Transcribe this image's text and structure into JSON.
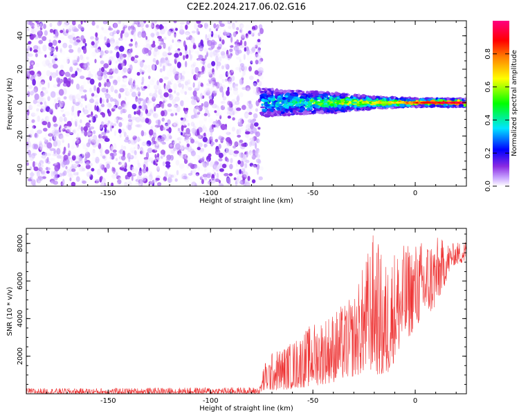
{
  "figure": {
    "title": "C2E2.2024.217.06.02.G16"
  },
  "chart_data": [
    {
      "type": "heatmap",
      "title": "C2E2.2024.217.06.02.G16",
      "xlabel": "Height of straight line (km)",
      "ylabel": "Frequency (Hz)",
      "xlim": [
        -190,
        25
      ],
      "ylim": [
        -50,
        49
      ],
      "xticks": [
        -150,
        -100,
        -50,
        0
      ],
      "yticks": [
        -40,
        -20,
        0,
        20,
        40
      ],
      "grid": false,
      "colorbar": {
        "label": "Normalized spectral amplitude",
        "range": [
          0,
          1
        ],
        "ticks": [
          0.0,
          0.2,
          0.4,
          0.6,
          0.8
        ],
        "colormap": [
          "#ffffff",
          "#c9a6ff",
          "#8a2be2",
          "#0000ff",
          "#00e5ff",
          "#00ff00",
          "#ffff00",
          "#ff8000",
          "#ff0000",
          "#ff0080"
        ]
      },
      "regions": [
        {
          "name": "noise",
          "x_range": [
            -190,
            -75
          ],
          "freq_range": [
            -50,
            49
          ],
          "amplitude_range": [
            0.0,
            0.25
          ]
        },
        {
          "name": "signal",
          "x_range": [
            -75,
            25
          ],
          "center_freq": 0,
          "amplitude_range": [
            0.2,
            1.0
          ]
        }
      ],
      "signal_halfwidth_hz": [
        [
          -75,
          7
        ],
        [
          -60,
          6
        ],
        [
          -40,
          5
        ],
        [
          -20,
          3
        ],
        [
          0,
          2
        ],
        [
          25,
          2
        ]
      ]
    },
    {
      "type": "line",
      "title": "",
      "xlabel": "Height of straight line (km)",
      "ylabel": "SNR (10 * v/v)",
      "xlim": [
        -190,
        25
      ],
      "ylim": [
        0,
        8800
      ],
      "xticks": [
        -150,
        -100,
        -50,
        0
      ],
      "yticks": [
        2000,
        4000,
        6000,
        8000
      ],
      "grid": false,
      "color": "#ee3333",
      "envelope": {
        "x": [
          -190,
          -150,
          -100,
          -76,
          -74,
          -70,
          -60,
          -50,
          -40,
          -30,
          -20,
          -15,
          -10,
          0,
          10,
          18,
          25
        ],
        "low": [
          0,
          0,
          0,
          0,
          100,
          150,
          250,
          400,
          600,
          900,
          1200,
          500,
          1800,
          3500,
          4500,
          6800,
          7000
        ],
        "high": [
          300,
          300,
          350,
          350,
          1600,
          2200,
          2800,
          3800,
          4400,
          5200,
          8800,
          7000,
          7800,
          8100,
          8400,
          8000,
          8200
        ]
      }
    }
  ]
}
